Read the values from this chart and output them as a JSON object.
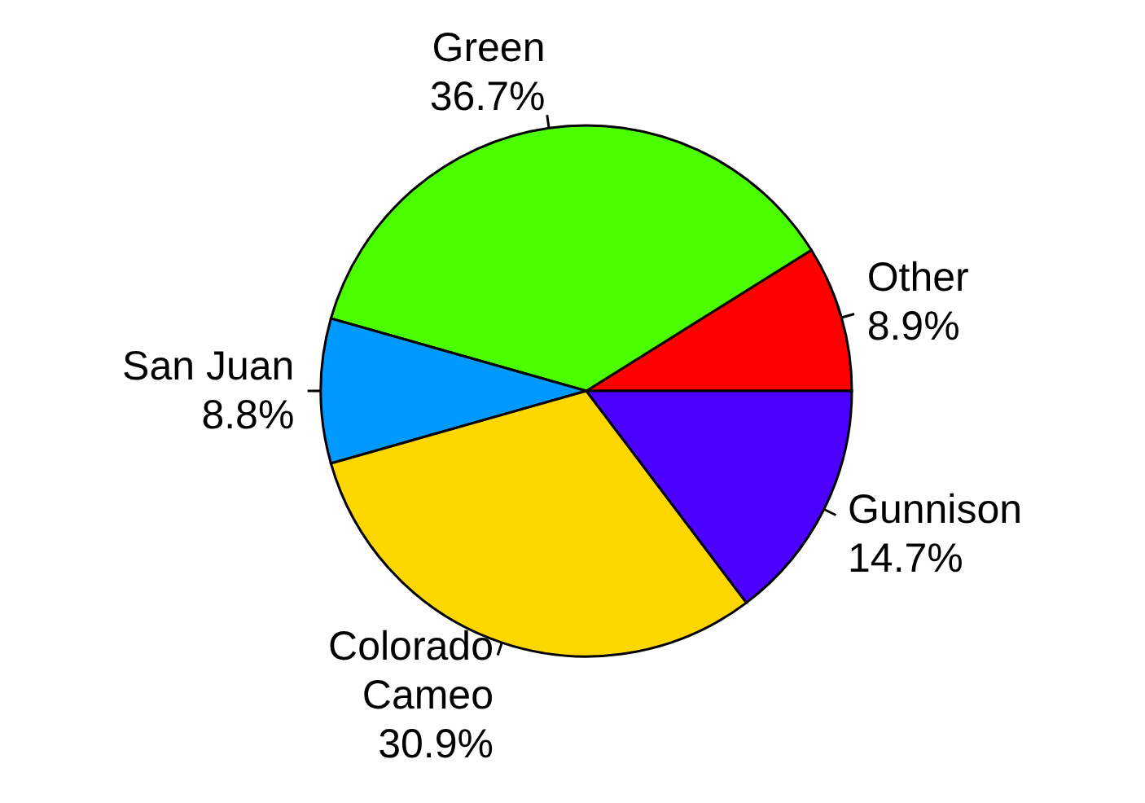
{
  "chart_data": {
    "type": "pie",
    "categories": [
      "Other",
      "Green",
      "San Juan",
      "Colorado\nCameo",
      "Gunnison"
    ],
    "values": [
      8.9,
      36.7,
      8.8,
      30.9,
      14.7
    ],
    "value_labels": [
      "8.9%",
      "36.7%",
      "8.8%",
      "30.9%",
      "14.7%"
    ],
    "colors": [
      "#ff0000",
      "#4cff00",
      "#0099ff",
      "#ffd700",
      "#4c00ff"
    ]
  }
}
